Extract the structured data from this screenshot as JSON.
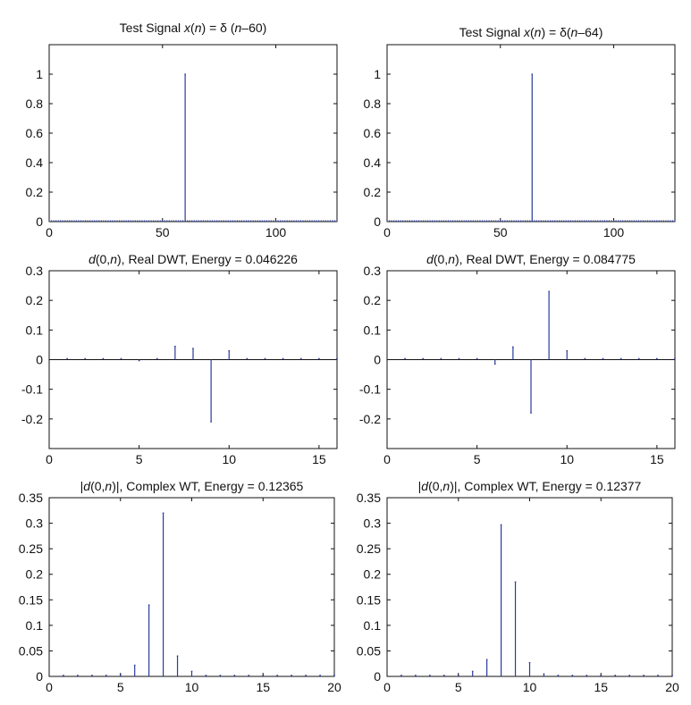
{
  "chart_data": [
    {
      "type": "stem",
      "title": "Test Signal x(n) = δ (n–60)",
      "title_parts": [
        {
          "t": "Test Signal "
        },
        {
          "t": "x",
          "i": true
        },
        {
          "t": "("
        },
        {
          "t": "n",
          "i": true
        },
        {
          "t": ") = δ ("
        },
        {
          "t": "n",
          "i": true
        },
        {
          "t": "–60)"
        }
      ],
      "xlim": [
        0,
        127
      ],
      "ylim": [
        0,
        1.2
      ],
      "xticks": [
        0,
        50,
        100
      ],
      "xtick_labels": [
        "0",
        "50",
        "100"
      ],
      "yticks": [
        0,
        0.2,
        0.4,
        0.6,
        0.8,
        1
      ],
      "ytick_labels": [
        "0",
        "0.2",
        "0.4",
        "0.6",
        "0.8",
        "1"
      ],
      "zero_line": false,
      "dense_baseline": true,
      "x": [
        60
      ],
      "y": [
        1
      ]
    },
    {
      "type": "stem",
      "title": "Test Signal x(n) = δ(n–64)",
      "title_parts": [
        {
          "t": "Test Signal "
        },
        {
          "t": "x",
          "i": true
        },
        {
          "t": "("
        },
        {
          "t": "n",
          "i": true
        },
        {
          "t": ") = δ("
        },
        {
          "t": "n",
          "i": true
        },
        {
          "t": "–64)"
        }
      ],
      "xlim": [
        0,
        127
      ],
      "ylim": [
        0,
        1.2
      ],
      "xticks": [
        0,
        50,
        100
      ],
      "xtick_labels": [
        "0",
        "50",
        "100"
      ],
      "yticks": [
        0,
        0.2,
        0.4,
        0.6,
        0.8,
        1
      ],
      "ytick_labels": [
        "0",
        "0.2",
        "0.4",
        "0.6",
        "0.8",
        "1"
      ],
      "zero_line": false,
      "dense_baseline": true,
      "x": [
        64
      ],
      "y": [
        1
      ]
    },
    {
      "type": "stem",
      "title": "d(0,n), Real DWT, Energy = 0.046226",
      "title_parts": [
        {
          "t": "d",
          "i": true
        },
        {
          "t": "(0,"
        },
        {
          "t": "n",
          "i": true
        },
        {
          "t": "), Real DWT, Energy = 0.046226"
        }
      ],
      "xlim": [
        0,
        16
      ],
      "ylim": [
        -0.3,
        0.3
      ],
      "xticks": [
        0,
        5,
        10,
        15
      ],
      "xtick_labels": [
        "0",
        "5",
        "10",
        "15"
      ],
      "yticks": [
        -0.2,
        -0.1,
        0,
        0.1,
        0.2,
        0.3
      ],
      "ytick_labels": [
        "-0.2",
        "-0.1",
        "0",
        "0.1",
        "0.2",
        "0.3"
      ],
      "zero_line": true,
      "dense_baseline": false,
      "x": [
        1,
        2,
        3,
        4,
        5,
        6,
        7,
        8,
        9,
        10,
        11,
        12,
        13,
        14,
        15,
        16
      ],
      "y": [
        0,
        0,
        0,
        0,
        -0.003,
        0,
        0.045,
        0.038,
        -0.21,
        0.03,
        0,
        0,
        0,
        0,
        0,
        0
      ]
    },
    {
      "type": "stem",
      "title": "d(0,n), Real DWT, Energy = 0.084775",
      "title_parts": [
        {
          "t": "d",
          "i": true
        },
        {
          "t": "(0,"
        },
        {
          "t": "n",
          "i": true
        },
        {
          "t": "), Real DWT, Energy = 0.084775"
        }
      ],
      "xlim": [
        0,
        16
      ],
      "ylim": [
        -0.3,
        0.3
      ],
      "xticks": [
        0,
        5,
        10,
        15
      ],
      "xtick_labels": [
        "0",
        "5",
        "10",
        "15"
      ],
      "yticks": [
        -0.2,
        -0.1,
        0,
        0.1,
        0.2,
        0.3
      ],
      "ytick_labels": [
        "-0.2",
        "-0.1",
        "0",
        "0.1",
        "0.2",
        "0.3"
      ],
      "zero_line": true,
      "dense_baseline": false,
      "x": [
        1,
        2,
        3,
        4,
        5,
        6,
        7,
        8,
        9,
        10,
        11,
        12,
        13,
        14,
        15,
        16
      ],
      "y": [
        0,
        0,
        0,
        0,
        0.002,
        -0.015,
        0.043,
        -0.18,
        0.23,
        0.03,
        0.002,
        0,
        0,
        0,
        0,
        0
      ]
    },
    {
      "type": "stem",
      "title": "|d(0,n)|, Complex WT, Energy = 0.12365",
      "title_parts": [
        {
          "t": "|"
        },
        {
          "t": "d",
          "i": true
        },
        {
          "t": "(0,"
        },
        {
          "t": "n",
          "i": true
        },
        {
          "t": ")|, Complex WT, Energy = 0.12365"
        }
      ],
      "xlim": [
        0,
        20
      ],
      "ylim": [
        0,
        0.35
      ],
      "xticks": [
        0,
        5,
        10,
        15,
        20
      ],
      "xtick_labels": [
        "0",
        "5",
        "10",
        "15",
        "20"
      ],
      "yticks": [
        0,
        0.05,
        0.1,
        0.15,
        0.2,
        0.25,
        0.3,
        0.35
      ],
      "ytick_labels": [
        "0",
        "0.05",
        "0.1",
        "0.15",
        "0.2",
        "0.25",
        "0.3",
        "0.35"
      ],
      "zero_line": false,
      "dense_baseline": false,
      "x": [
        1,
        2,
        3,
        4,
        5,
        6,
        7,
        8,
        9,
        10,
        11,
        12,
        13,
        14,
        15,
        16,
        17,
        18,
        19,
        20
      ],
      "y": [
        0.001,
        0.001,
        0.001,
        0.001,
        0.004,
        0.022,
        0.14,
        0.32,
        0.04,
        0.01,
        0.002,
        0,
        0,
        0,
        0,
        0.001,
        0,
        0,
        0,
        0
      ]
    },
    {
      "type": "stem",
      "title": "|d(0,n)|, Complex WT, Energy = 0.12377",
      "title_parts": [
        {
          "t": "|"
        },
        {
          "t": "d",
          "i": true
        },
        {
          "t": "(0,"
        },
        {
          "t": "n",
          "i": true
        },
        {
          "t": ")|, Complex WT, Energy = 0.12377"
        }
      ],
      "xlim": [
        0,
        20
      ],
      "ylim": [
        0,
        0.35
      ],
      "xticks": [
        0,
        5,
        10,
        15,
        20
      ],
      "xtick_labels": [
        "0",
        "5",
        "10",
        "15",
        "20"
      ],
      "yticks": [
        0,
        0.05,
        0.1,
        0.15,
        0.2,
        0.25,
        0.3,
        0.35
      ],
      "ytick_labels": [
        "0",
        "0.05",
        "0.1",
        "0.15",
        "0.2",
        "0.25",
        "0.3",
        "0.35"
      ],
      "zero_line": false,
      "dense_baseline": false,
      "x": [
        1,
        2,
        3,
        4,
        5,
        6,
        7,
        8,
        9,
        10,
        11,
        12,
        13,
        14,
        15,
        16,
        17,
        18,
        19,
        20
      ],
      "y": [
        0,
        0,
        0,
        0,
        0,
        0.01,
        0.033,
        0.297,
        0.185,
        0.027,
        0.005,
        0.001,
        0,
        0,
        0,
        0,
        0,
        0,
        0,
        0
      ]
    }
  ]
}
